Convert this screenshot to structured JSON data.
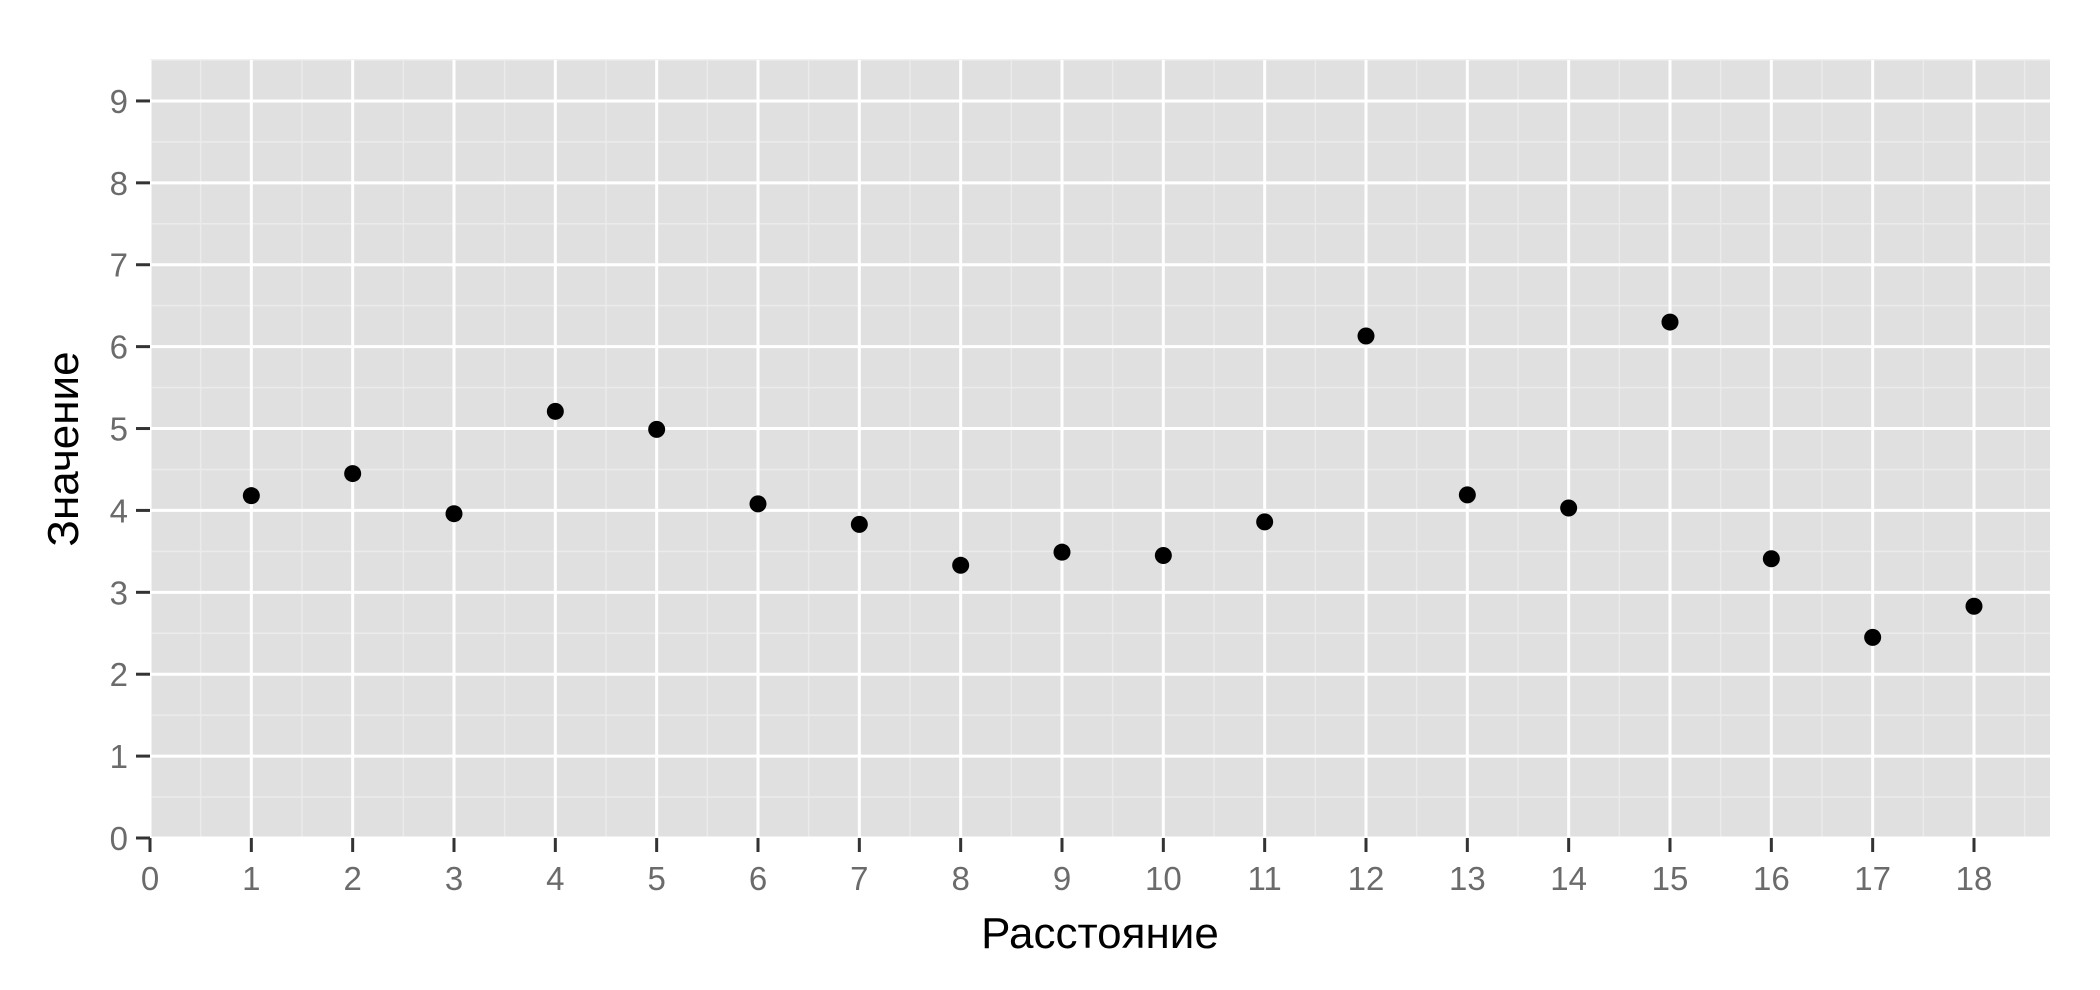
{
  "chart_data": {
    "type": "scatter",
    "title": "",
    "xlabel": "Расстояние",
    "ylabel": "Значение",
    "xlim": [
      0,
      18.75
    ],
    "ylim": [
      0,
      9.5
    ],
    "x_ticks": [
      0,
      1,
      2,
      3,
      4,
      5,
      6,
      7,
      8,
      9,
      10,
      11,
      12,
      13,
      14,
      15,
      16,
      17,
      18
    ],
    "y_ticks": [
      0,
      1,
      2,
      3,
      4,
      5,
      6,
      7,
      8,
      9
    ],
    "grid": true,
    "legend": "none",
    "colors": {
      "panel": "#e0e0e0",
      "grid_major": "#ffffff",
      "grid_minor": "#ebebeb",
      "point": "#000000",
      "tick_text": "#6b6b6b"
    },
    "series": [
      {
        "x": [
          1,
          2,
          3,
          4,
          5,
          6,
          7,
          8,
          9,
          10,
          11,
          12,
          13,
          14,
          15,
          16,
          17,
          18
        ],
        "y": [
          4.18,
          4.45,
          3.96,
          5.21,
          4.99,
          4.08,
          3.83,
          3.33,
          3.49,
          3.45,
          3.86,
          6.13,
          4.19,
          4.03,
          6.3,
          3.41,
          2.45,
          2.83
        ]
      }
    ]
  }
}
